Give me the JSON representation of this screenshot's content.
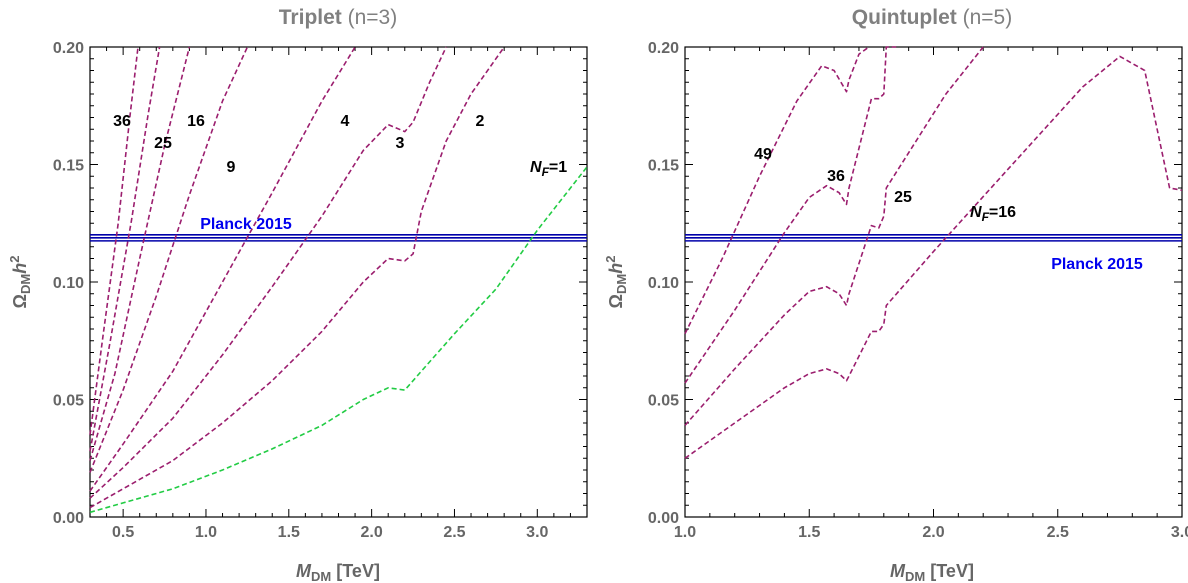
{
  "colors": {
    "frame": "#000000",
    "axis_text": "#666666",
    "title_text": "#808080",
    "curve": "#9b1e6e",
    "nf1_curve": "#22cc44",
    "planck": "#0000aa",
    "label": "#000000",
    "planck_label": "#0000ee"
  },
  "chart_data": [
    {
      "type": "line",
      "title": "Triplet (n=3)",
      "title_parts": {
        "name": "Triplet",
        "suffix": "(n=3)"
      },
      "xlabel": {
        "sym": "M",
        "sub": "DM",
        "unit": "[TeV]"
      },
      "ylabel": {
        "sym": "Ω",
        "sub": "DM",
        "mid": "h",
        "sup": "2"
      },
      "xlim": [
        0.3,
        3.3
      ],
      "ylim": [
        0.0,
        0.2
      ],
      "x_ticks": [
        "0.5",
        "1.0",
        "1.5",
        "2.0",
        "2.5",
        "3.0"
      ],
      "x_tick_values": [
        0.5,
        1.0,
        1.5,
        2.0,
        2.5,
        3.0
      ],
      "y_ticks": [
        "0.00",
        "0.05",
        "0.10",
        "0.15",
        "0.20"
      ],
      "y_tick_values": [
        0.0,
        0.05,
        0.1,
        0.15,
        0.2
      ],
      "planck": {
        "label": "Planck 2015",
        "values": [
          0.1175,
          0.1188,
          0.1201
        ]
      },
      "series": [
        {
          "name": "N_F=1",
          "style": "green",
          "x": [
            0.3,
            0.5,
            0.8,
            1.1,
            1.4,
            1.7,
            1.95,
            2.1,
            2.2,
            2.3,
            2.5,
            2.75,
            3.0,
            3.3
          ],
          "y": [
            0.002,
            0.006,
            0.012,
            0.02,
            0.029,
            0.039,
            0.05,
            0.055,
            0.054,
            0.062,
            0.078,
            0.097,
            0.122,
            0.149
          ]
        },
        {
          "name": "2",
          "style": "purple",
          "x": [
            0.3,
            0.5,
            0.8,
            1.1,
            1.4,
            1.7,
            1.95,
            2.1,
            2.2,
            2.25,
            2.3,
            2.45,
            2.6,
            2.8
          ],
          "y": [
            0.004,
            0.012,
            0.024,
            0.04,
            0.058,
            0.079,
            0.1,
            0.11,
            0.109,
            0.112,
            0.13,
            0.16,
            0.18,
            0.2
          ]
        },
        {
          "name": "3",
          "style": "purple",
          "x": [
            0.3,
            0.5,
            0.8,
            1.1,
            1.4,
            1.7,
            1.95,
            2.1,
            2.2,
            2.25,
            2.35,
            2.45
          ],
          "y": [
            0.008,
            0.021,
            0.042,
            0.069,
            0.098,
            0.128,
            0.156,
            0.167,
            0.164,
            0.168,
            0.185,
            0.2
          ]
        },
        {
          "name": "4",
          "style": "purple",
          "x": [
            0.3,
            0.5,
            0.8,
            1.1,
            1.4,
            1.7,
            1.9
          ],
          "y": [
            0.011,
            0.031,
            0.062,
            0.1,
            0.138,
            0.177,
            0.2
          ]
        },
        {
          "name": "9",
          "style": "purple",
          "x": [
            0.3,
            0.5,
            0.7,
            0.9,
            1.1,
            1.25
          ],
          "y": [
            0.019,
            0.054,
            0.094,
            0.137,
            0.177,
            0.2
          ]
        },
        {
          "name": "16",
          "style": "purple",
          "x": [
            0.3,
            0.45,
            0.6,
            0.75,
            0.9
          ],
          "y": [
            0.024,
            0.061,
            0.11,
            0.158,
            0.2
          ]
        },
        {
          "name": "25",
          "style": "purple",
          "x": [
            0.3,
            0.42,
            0.55,
            0.65,
            0.72
          ],
          "y": [
            0.028,
            0.074,
            0.126,
            0.171,
            0.2
          ]
        },
        {
          "name": "36",
          "style": "purple",
          "x": [
            0.3,
            0.38,
            0.47,
            0.54,
            0.59
          ],
          "y": [
            0.035,
            0.078,
            0.125,
            0.17,
            0.2
          ]
        }
      ],
      "curve_labels": [
        "36",
        "25",
        "16",
        "9",
        "4",
        "3",
        "2",
        "N_F=1"
      ]
    },
    {
      "type": "line",
      "title": "Quintuplet (n=5)",
      "title_parts": {
        "name": "Quintuplet",
        "suffix": "(n=5)"
      },
      "xlabel": {
        "sym": "M",
        "sub": "DM",
        "unit": "[TeV]"
      },
      "ylabel": {
        "sym": "Ω",
        "sub": "DM",
        "mid": "h",
        "sup": "2"
      },
      "xlim": [
        1.0,
        3.0
      ],
      "ylim": [
        0.0,
        0.2
      ],
      "x_ticks": [
        "1.0",
        "1.5",
        "2.0",
        "2.5",
        "3.0"
      ],
      "x_tick_values": [
        1.0,
        1.5,
        2.0,
        2.5,
        3.0
      ],
      "y_ticks": [
        "0.00",
        "0.05",
        "0.10",
        "0.15",
        "0.20"
      ],
      "y_tick_values": [
        0.0,
        0.05,
        0.1,
        0.15,
        0.2
      ],
      "planck": {
        "label": "Planck 2015",
        "values": [
          0.1175,
          0.1188,
          0.1201
        ]
      },
      "series": [
        {
          "name": "N_F=16",
          "style": "purple",
          "x": [
            1.0,
            1.2,
            1.4,
            1.5,
            1.57,
            1.62,
            1.65,
            1.66,
            1.75,
            1.78,
            1.8,
            1.81,
            2.0,
            2.3,
            2.6,
            2.75,
            2.85,
            2.95,
            3.0
          ],
          "y": [
            0.025,
            0.04,
            0.055,
            0.061,
            0.063,
            0.061,
            0.058,
            0.06,
            0.079,
            0.079,
            0.082,
            0.09,
            0.113,
            0.148,
            0.183,
            0.196,
            0.19,
            0.14,
            0.139
          ]
        },
        {
          "name": "25",
          "style": "purple",
          "x": [
            1.0,
            1.2,
            1.4,
            1.5,
            1.57,
            1.62,
            1.65,
            1.66,
            1.75,
            1.78,
            1.8,
            1.81,
            1.9,
            2.05,
            2.2
          ],
          "y": [
            0.039,
            0.063,
            0.086,
            0.096,
            0.098,
            0.095,
            0.09,
            0.095,
            0.124,
            0.123,
            0.128,
            0.14,
            0.155,
            0.18,
            0.2
          ]
        },
        {
          "name": "36",
          "style": "purple",
          "x": [
            1.0,
            1.2,
            1.4,
            1.5,
            1.57,
            1.62,
            1.65,
            1.66,
            1.75,
            1.78,
            1.8,
            1.81,
            1.85
          ],
          "y": [
            0.057,
            0.088,
            0.121,
            0.136,
            0.141,
            0.138,
            0.133,
            0.14,
            0.178,
            0.178,
            0.18,
            0.2,
            0.2
          ]
        },
        {
          "name": "49",
          "style": "purple",
          "x": [
            1.0,
            1.15,
            1.3,
            1.45,
            1.55,
            1.6,
            1.65,
            1.66,
            1.7,
            1.74
          ],
          "y": [
            0.078,
            0.11,
            0.145,
            0.177,
            0.192,
            0.19,
            0.181,
            0.186,
            0.197,
            0.2
          ]
        }
      ],
      "curve_labels": [
        "49",
        "36",
        "25",
        "N_F=16"
      ]
    }
  ]
}
